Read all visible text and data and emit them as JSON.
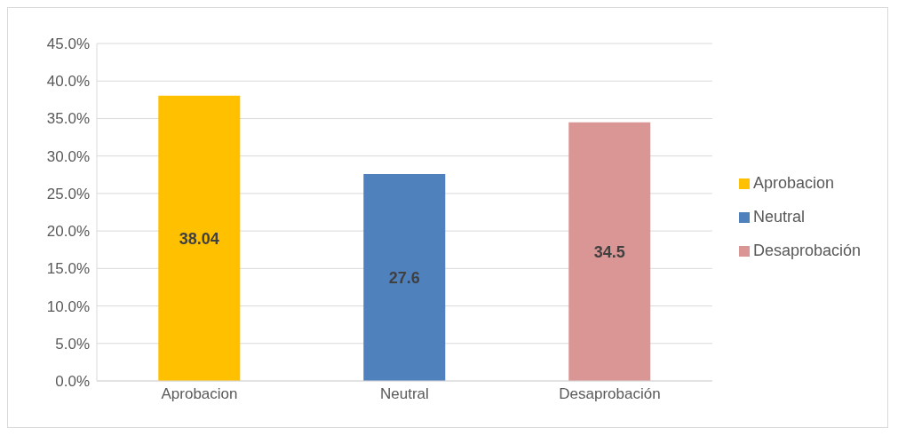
{
  "chart_data": {
    "type": "bar",
    "categories": [
      "Aprobacion",
      "Neutral",
      "Desaprobación"
    ],
    "series": [
      {
        "name": "Aprobacion",
        "color": "#ffc000",
        "values": [
          38.04,
          null,
          null
        ]
      },
      {
        "name": "Neutral",
        "color": "#4f81bd",
        "values": [
          null,
          27.6,
          null
        ]
      },
      {
        "name": "Desaprobación",
        "color": "#d99694",
        "values": [
          null,
          null,
          34.5
        ]
      }
    ],
    "stacked": true,
    "ylim": [
      0,
      45
    ],
    "yticks": [
      {
        "value": 0,
        "label": "0.0%"
      },
      {
        "value": 5,
        "label": "5.0%"
      },
      {
        "value": 10,
        "label": "10.0%"
      },
      {
        "value": 15,
        "label": "15.0%"
      },
      {
        "value": 20,
        "label": "20.0%"
      },
      {
        "value": 25,
        "label": "25.0%"
      },
      {
        "value": 30,
        "label": "30.0%"
      },
      {
        "value": 35,
        "label": "35.0%"
      },
      {
        "value": 40,
        "label": "40.0%"
      },
      {
        "value": 45,
        "label": "45.0%"
      }
    ],
    "grid": "y",
    "data_labels": true,
    "legend": "right"
  }
}
